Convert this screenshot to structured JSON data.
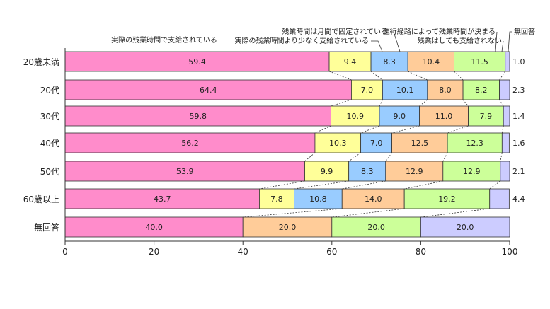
{
  "chart_data": {
    "type": "bar",
    "orientation": "horizontal",
    "stacked": true,
    "categories": [
      "20歳未満",
      "20代",
      "30代",
      "40代",
      "50代",
      "60歳以上",
      "無回答"
    ],
    "series": [
      {
        "name": "実際の残業時間で支給されている",
        "color": "#ff8ccb",
        "values": [
          59.4,
          64.4,
          59.8,
          56.2,
          53.9,
          43.7,
          40.0
        ]
      },
      {
        "name": "残業時間は月間で固定されている",
        "color": "#ffff99",
        "values": [
          9.4,
          7.0,
          10.9,
          10.3,
          9.9,
          7.8,
          0
        ]
      },
      {
        "name": "実際の残業時間より少なく支給されている",
        "color": "#99ccff",
        "values": [
          8.3,
          10.1,
          9.0,
          7.0,
          8.3,
          10.8,
          0
        ]
      },
      {
        "name": "運行経路によって残業時間が決まる",
        "color": "#ffcc99",
        "values": [
          10.4,
          8.0,
          11.0,
          12.5,
          12.9,
          14.0,
          20.0
        ]
      },
      {
        "name": "残業はしても支給されない",
        "color": "#ccff99",
        "values": [
          11.5,
          8.2,
          7.9,
          12.3,
          12.9,
          19.2,
          20.0
        ]
      },
      {
        "name": "無回答",
        "color": "#ccccff",
        "values": [
          1.0,
          2.3,
          1.4,
          1.6,
          2.1,
          4.4,
          20.0
        ]
      }
    ],
    "outside_labels": [
      "1.0",
      "2.3",
      "1.4",
      "1.6",
      "2.1",
      "4.4",
      ""
    ],
    "xlim": [
      0,
      100
    ],
    "xticks": [
      0,
      20,
      40,
      60,
      80,
      100
    ],
    "grid": false,
    "legend": "top"
  }
}
